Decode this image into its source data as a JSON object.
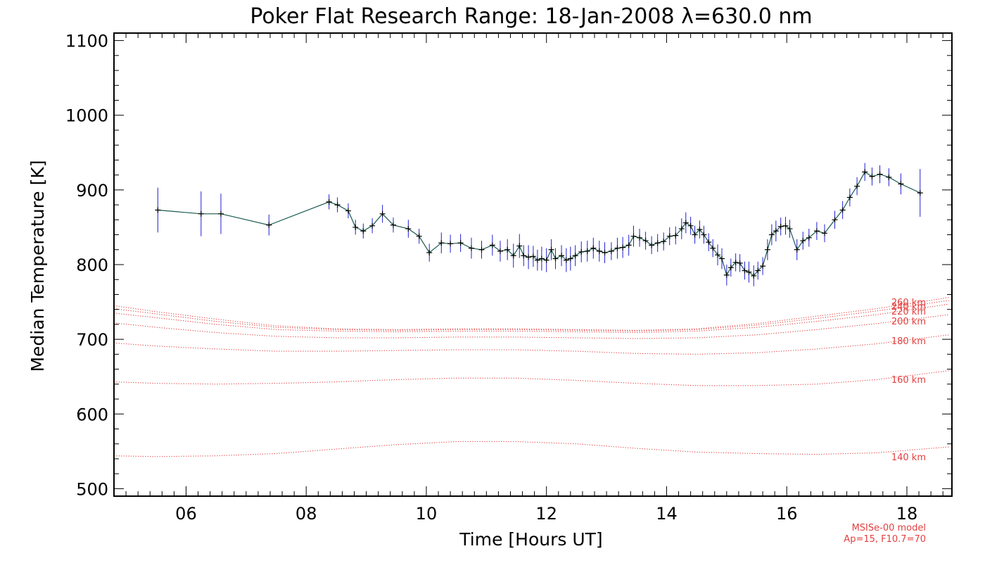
{
  "chart_data": {
    "type": "line",
    "title": "Poker Flat Research Range: 18-Jan-2008 λ=630.0 nm",
    "xlabel": "Time [Hours UT]",
    "ylabel": "Median Temperature [K]",
    "xlim": [
      4.8,
      18.75
    ],
    "ylim": [
      490,
      1110
    ],
    "x_ticks": [
      6,
      8,
      10,
      12,
      14,
      16,
      18
    ],
    "x_tick_labels": [
      "06",
      "08",
      "10",
      "12",
      "14",
      "16",
      "18"
    ],
    "y_ticks": [
      500,
      600,
      700,
      800,
      900,
      1000,
      1100
    ],
    "y_tick_labels": [
      "500",
      "600",
      "700",
      "800",
      "900",
      "1000",
      "1100"
    ],
    "grid": false,
    "colors": {
      "measurement_line": "#1a5a50",
      "markers": "#000000",
      "error_bars": "#2020d0",
      "model": "#e34040"
    },
    "series": [
      {
        "x": [
          5.53,
          6.25,
          6.58,
          7.38,
          8.38,
          8.52,
          8.7,
          8.82,
          8.95,
          9.1,
          9.27,
          9.45,
          9.7,
          9.88,
          10.05,
          10.25,
          10.4,
          10.57,
          10.75,
          10.92,
          11.1,
          11.23,
          11.35,
          11.45,
          11.55,
          11.62,
          11.7,
          11.78,
          11.85,
          11.92,
          12.0,
          12.08,
          12.15,
          12.25,
          12.33,
          12.4,
          12.48,
          12.58,
          12.68,
          12.78,
          12.88,
          12.97,
          13.08,
          13.18,
          13.27,
          13.37,
          13.45,
          13.55,
          13.65,
          13.75,
          13.85,
          13.95,
          14.05,
          14.15,
          14.25,
          14.32,
          14.4,
          14.47,
          14.55,
          14.62,
          14.7,
          14.77,
          14.85,
          14.92,
          15.0,
          15.07,
          15.15,
          15.22,
          15.3,
          15.37,
          15.45,
          15.52,
          15.6,
          15.68,
          15.75,
          15.82,
          15.9,
          15.98,
          16.05,
          16.17,
          16.27,
          16.37,
          16.5,
          16.63,
          16.8,
          16.93,
          17.05,
          17.17,
          17.3,
          17.42,
          17.55,
          17.7,
          17.9,
          18.22
        ],
        "values": [
          873,
          868,
          868,
          853,
          884,
          880,
          872,
          850,
          845,
          852,
          868,
          853,
          848,
          838,
          816,
          829,
          828,
          829,
          822,
          820,
          826,
          818,
          820,
          812,
          825,
          812,
          810,
          811,
          806,
          808,
          806,
          820,
          808,
          812,
          806,
          808,
          812,
          817,
          818,
          822,
          818,
          816,
          818,
          822,
          823,
          826,
          838,
          836,
          832,
          826,
          829,
          831,
          838,
          839,
          848,
          856,
          852,
          840,
          847,
          840,
          830,
          822,
          813,
          808,
          786,
          796,
          803,
          802,
          792,
          790,
          785,
          792,
          798,
          820,
          840,
          845,
          851,
          852,
          848,
          820,
          832,
          836,
          845,
          842,
          860,
          873,
          890,
          905,
          924,
          918,
          921,
          917,
          908,
          896
        ],
        "errors": [
          30,
          30,
          27,
          14,
          10,
          10,
          10,
          10,
          10,
          10,
          12,
          10,
          12,
          10,
          12,
          14,
          12,
          12,
          14,
          12,
          14,
          14,
          14,
          16,
          16,
          14,
          16,
          14,
          14,
          16,
          16,
          14,
          14,
          14,
          16,
          16,
          14,
          14,
          14,
          14,
          14,
          14,
          12,
          14,
          14,
          14,
          14,
          12,
          12,
          12,
          12,
          12,
          12,
          12,
          14,
          14,
          12,
          12,
          12,
          12,
          12,
          12,
          14,
          14,
          14,
          12,
          12,
          12,
          12,
          14,
          14,
          12,
          12,
          14,
          14,
          14,
          12,
          12,
          12,
          14,
          12,
          12,
          12,
          12,
          12,
          12,
          12,
          12,
          12,
          12,
          12,
          12,
          14,
          32
        ]
      }
    ],
    "model_curves": [
      {
        "name": "260 km",
        "x": [
          4.8,
          5.5,
          6.5,
          7.5,
          8.5,
          9.5,
          10.5,
          11.5,
          12.5,
          13.5,
          14.5,
          15.5,
          16.5,
          17.5,
          18.7
        ],
        "values": [
          745,
          737,
          727,
          718,
          714,
          713,
          714,
          714,
          713,
          712,
          714,
          721,
          731,
          741,
          756
        ]
      },
      {
        "name": "240 km",
        "x": [
          4.8,
          5.5,
          6.5,
          7.5,
          8.5,
          9.5,
          10.5,
          11.5,
          12.5,
          13.5,
          14.5,
          15.5,
          16.5,
          17.5,
          18.7
        ],
        "values": [
          741,
          734,
          724,
          716,
          713,
          712,
          713,
          713,
          712,
          711,
          713,
          719,
          728,
          738,
          752
        ]
      },
      {
        "name": "220 km",
        "x": [
          4.8,
          5.5,
          6.5,
          7.5,
          8.5,
          9.5,
          10.5,
          11.5,
          12.5,
          13.5,
          14.5,
          15.5,
          16.5,
          17.5,
          18.7
        ],
        "values": [
          735,
          729,
          720,
          713,
          711,
          710,
          711,
          711,
          710,
          709,
          711,
          716,
          724,
          733,
          747
        ]
      },
      {
        "name": "200 km",
        "x": [
          4.8,
          5.5,
          6.5,
          7.5,
          8.5,
          9.5,
          10.5,
          11.5,
          12.5,
          13.5,
          14.5,
          15.5,
          16.5,
          17.5,
          18.7
        ],
        "values": [
          722,
          716,
          709,
          704,
          702,
          702,
          703,
          703,
          702,
          701,
          702,
          706,
          713,
          721,
          733
        ]
      },
      {
        "name": "180 km",
        "x": [
          4.8,
          5.5,
          6.5,
          7.5,
          8.5,
          9.5,
          10.5,
          11.5,
          12.5,
          13.5,
          14.5,
          15.5,
          16.5,
          17.5,
          18.7
        ],
        "values": [
          695,
          691,
          687,
          684,
          684,
          685,
          686,
          686,
          684,
          681,
          680,
          682,
          687,
          694,
          706
        ]
      },
      {
        "name": "160 km",
        "x": [
          4.8,
          5.5,
          6.5,
          7.5,
          8.5,
          9.5,
          10.5,
          11.5,
          12.5,
          13.5,
          14.5,
          15.5,
          16.5,
          17.5,
          18.7
        ],
        "values": [
          643,
          641,
          640,
          641,
          643,
          646,
          648,
          648,
          645,
          641,
          638,
          638,
          640,
          646,
          658
        ]
      },
      {
        "name": "140 km",
        "x": [
          4.8,
          5.5,
          6.5,
          7.5,
          8.5,
          9.5,
          10.5,
          11.5,
          12.5,
          13.5,
          14.5,
          15.5,
          16.5,
          17.5,
          18.7
        ],
        "values": [
          544,
          543,
          544,
          547,
          553,
          559,
          563,
          563,
          560,
          554,
          549,
          547,
          546,
          548,
          556
        ]
      }
    ],
    "model_labels": [
      "260 km",
      "240 km",
      "220 km",
      "200 km",
      "180 km",
      "160 km",
      "140 km"
    ],
    "footnote": [
      "MSISe-00 model",
      "Ap=15, F10.7=70"
    ]
  }
}
